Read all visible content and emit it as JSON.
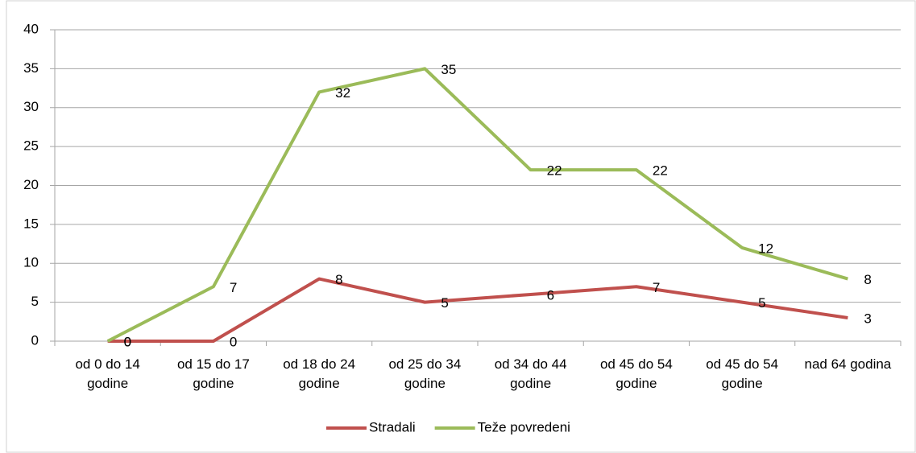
{
  "chart_data": {
    "type": "line",
    "categories": [
      "od 0 do 14 godine",
      "od 15 do 17 godine",
      "od 18 do 24 godine",
      "od 25 do 34 godine",
      "od 34 do 44 godine",
      "od 45 do 54 godine",
      "od 45 do 54 godine",
      "nad 64 godina"
    ],
    "series": [
      {
        "name": "Stradali",
        "color": "#c0504d",
        "values": [
          0,
          0,
          8,
          5,
          6,
          7,
          5,
          3
        ]
      },
      {
        "name": "Teže povredeni",
        "color": "#9bbb59",
        "values": [
          0,
          7,
          32,
          35,
          22,
          22,
          12,
          8
        ]
      }
    ],
    "ylim": [
      0,
      40
    ],
    "yticks": [
      0,
      5,
      10,
      15,
      20,
      25,
      30,
      35,
      40
    ],
    "grid": true,
    "legend": "bottom"
  }
}
